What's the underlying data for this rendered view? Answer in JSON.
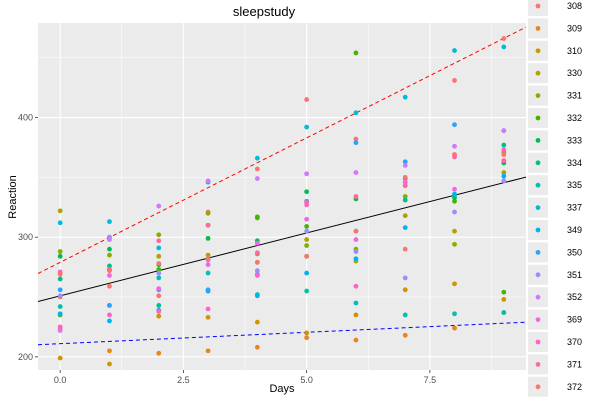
{
  "chart_data": {
    "type": "scatter",
    "title": "sleepstudy",
    "xlabel": "Days",
    "ylabel": "Reaction",
    "xlim": [
      -0.45,
      9.45
    ],
    "ylim": [
      189,
      479
    ],
    "x_ticks": [
      0.0,
      2.5,
      5.0,
      7.5
    ],
    "x_tick_labels": [
      "0.0",
      "2.5",
      "5.0",
      "7.5"
    ],
    "y_ticks": [
      200,
      300,
      400
    ],
    "y_tick_labels": [
      "200",
      "300",
      "400"
    ],
    "grid": true,
    "legend_position": "right",
    "legend_entries": [
      "308",
      "309",
      "310",
      "330",
      "331",
      "332",
      "333",
      "334",
      "335",
      "337",
      "349",
      "350",
      "351",
      "352",
      "369",
      "370",
      "371",
      "372"
    ],
    "series": [
      {
        "name": "308",
        "color": "#F8766D",
        "points": [
          [
            0,
            250
          ],
          [
            1,
            259
          ],
          [
            2,
            251
          ],
          [
            3,
            321
          ],
          [
            4,
            357
          ],
          [
            5,
            415
          ],
          [
            6,
            382
          ],
          [
            7,
            290
          ],
          [
            8,
            431
          ],
          [
            9,
            466
          ]
        ]
      },
      {
        "name": "309",
        "color": "#E7851E",
        "points": [
          [
            0,
            223
          ],
          [
            1,
            205
          ],
          [
            2,
            203
          ],
          [
            3,
            205
          ],
          [
            4,
            208
          ],
          [
            5,
            216
          ],
          [
            6,
            214
          ],
          [
            7,
            218
          ],
          [
            8,
            224
          ],
          [
            9,
            237
          ]
        ]
      },
      {
        "name": "310",
        "color": "#D09400",
        "points": [
          [
            0,
            199
          ],
          [
            1,
            194
          ],
          [
            2,
            234
          ],
          [
            3,
            233
          ],
          [
            4,
            229
          ],
          [
            5,
            220
          ],
          [
            6,
            235
          ],
          [
            7,
            256
          ],
          [
            8,
            261
          ],
          [
            9,
            248
          ]
        ]
      },
      {
        "name": "330",
        "color": "#B2A100",
        "points": [
          [
            0,
            322
          ],
          [
            1,
            300
          ],
          [
            2,
            284
          ],
          [
            3,
            285
          ],
          [
            4,
            286
          ],
          [
            5,
            298
          ],
          [
            6,
            280
          ],
          [
            7,
            318
          ],
          [
            8,
            305
          ],
          [
            9,
            354
          ]
        ]
      },
      {
        "name": "331",
        "color": "#89AC00",
        "points": [
          [
            0,
            288
          ],
          [
            1,
            285
          ],
          [
            2,
            302
          ],
          [
            3,
            320
          ],
          [
            4,
            316
          ],
          [
            5,
            293
          ],
          [
            6,
            290
          ],
          [
            7,
            334
          ],
          [
            8,
            294
          ],
          [
            9,
            371
          ]
        ]
      },
      {
        "name": "332",
        "color": "#45B500",
        "points": [
          [
            0,
            235
          ],
          [
            1,
            243
          ],
          [
            2,
            273
          ],
          [
            3,
            310
          ],
          [
            4,
            317
          ],
          [
            5,
            309
          ],
          [
            6,
            454
          ],
          [
            7,
            346
          ],
          [
            8,
            330
          ],
          [
            9,
            254
          ]
        ]
      },
      {
        "name": "333",
        "color": "#00BC51",
        "points": [
          [
            0,
            284
          ],
          [
            1,
            290
          ],
          [
            2,
            277
          ],
          [
            3,
            299
          ],
          [
            4,
            297
          ],
          [
            5,
            338
          ],
          [
            6,
            332
          ],
          [
            7,
            349
          ],
          [
            8,
            333
          ],
          [
            9,
            362
          ]
        ]
      },
      {
        "name": "334",
        "color": "#00C087",
        "points": [
          [
            0,
            265
          ],
          [
            1,
            276
          ],
          [
            2,
            243
          ],
          [
            3,
            255
          ],
          [
            4,
            279
          ],
          [
            5,
            284
          ],
          [
            6,
            305
          ],
          [
            7,
            331
          ],
          [
            8,
            335
          ],
          [
            9,
            377
          ]
        ]
      },
      {
        "name": "335",
        "color": "#00C0B2",
        "points": [
          [
            0,
            242
          ],
          [
            1,
            273
          ],
          [
            2,
            266
          ],
          [
            3,
            270
          ],
          [
            4,
            252
          ],
          [
            5,
            255
          ],
          [
            6,
            245
          ],
          [
            7,
            235
          ],
          [
            8,
            236
          ],
          [
            9,
            237
          ]
        ]
      },
      {
        "name": "337",
        "color": "#00BCD6",
        "points": [
          [
            0,
            312
          ],
          [
            1,
            313
          ],
          [
            2,
            291
          ],
          [
            3,
            346
          ],
          [
            4,
            366
          ],
          [
            5,
            392
          ],
          [
            6,
            404
          ],
          [
            7,
            417
          ],
          [
            8,
            456
          ],
          [
            9,
            459
          ]
        ]
      },
      {
        "name": "349",
        "color": "#00B3F2",
        "points": [
          [
            0,
            236
          ],
          [
            1,
            230
          ],
          [
            2,
            239
          ],
          [
            3,
            255
          ],
          [
            4,
            251
          ],
          [
            5,
            270
          ],
          [
            6,
            282
          ],
          [
            7,
            308
          ],
          [
            8,
            336
          ],
          [
            9,
            351
          ]
        ]
      },
      {
        "name": "350",
        "color": "#29A3FF",
        "points": [
          [
            0,
            256
          ],
          [
            1,
            243
          ],
          [
            2,
            256
          ],
          [
            3,
            256
          ],
          [
            4,
            269
          ],
          [
            5,
            330
          ],
          [
            6,
            379
          ],
          [
            7,
            363
          ],
          [
            8,
            394
          ],
          [
            9,
            389
          ]
        ]
      },
      {
        "name": "351",
        "color": "#9C8DFF",
        "points": [
          [
            0,
            251
          ],
          [
            1,
            300
          ],
          [
            2,
            270
          ],
          [
            3,
            281
          ],
          [
            4,
            272
          ],
          [
            5,
            305
          ],
          [
            6,
            288
          ],
          [
            7,
            266
          ],
          [
            8,
            321
          ],
          [
            9,
            347
          ]
        ]
      },
      {
        "name": "352",
        "color": "#D277FF",
        "points": [
          [
            0,
            222
          ],
          [
            1,
            298
          ],
          [
            2,
            326
          ],
          [
            3,
            347
          ],
          [
            4,
            349
          ],
          [
            5,
            353
          ],
          [
            6,
            354
          ],
          [
            7,
            360
          ],
          [
            8,
            376
          ],
          [
            9,
            389
          ]
        ]
      },
      {
        "name": "369",
        "color": "#F166E8",
        "points": [
          [
            0,
            271
          ],
          [
            1,
            268
          ],
          [
            2,
            257
          ],
          [
            3,
            277
          ],
          [
            4,
            295
          ],
          [
            5,
            315
          ],
          [
            6,
            298
          ],
          [
            7,
            346
          ],
          [
            8,
            340
          ],
          [
            9,
            364
          ]
        ]
      },
      {
        "name": "370",
        "color": "#FF61C7",
        "points": [
          [
            0,
            225
          ],
          [
            1,
            235
          ],
          [
            2,
            238
          ],
          [
            3,
            240
          ],
          [
            4,
            268
          ],
          [
            5,
            327
          ],
          [
            6,
            259
          ],
          [
            7,
            343
          ],
          [
            8,
            367
          ],
          [
            9,
            373
          ]
        ]
      },
      {
        "name": "371",
        "color": "#FF689E",
        "points": [
          [
            0,
            270
          ],
          [
            1,
            273
          ],
          [
            2,
            297
          ],
          [
            3,
            310
          ],
          [
            4,
            287
          ],
          [
            5,
            329
          ],
          [
            6,
            334
          ],
          [
            7,
            343
          ],
          [
            8,
            369
          ],
          [
            9,
            364
          ]
        ]
      },
      {
        "name": "372",
        "color": "#F8766D",
        "points": [
          [
            0,
            269
          ],
          [
            1,
            272
          ],
          [
            2,
            278
          ],
          [
            3,
            282
          ],
          [
            4,
            279
          ],
          [
            5,
            284
          ],
          [
            6,
            305
          ],
          [
            7,
            350
          ],
          [
            8,
            369
          ],
          [
            9,
            369
          ]
        ]
      }
    ],
    "reference_lines": [
      {
        "intercept": 279,
        "slope": 20.8,
        "color": "#FF0000",
        "linetype": "dashed"
      },
      {
        "intercept": 251,
        "slope": 10.5,
        "color": "#000000",
        "linetype": "solid"
      },
      {
        "intercept": 211,
        "slope": 1.9,
        "color": "#0000FF",
        "linetype": "dashed"
      }
    ]
  }
}
